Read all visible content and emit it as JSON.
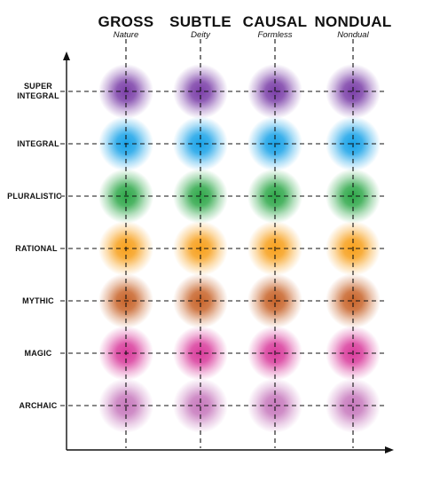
{
  "columns": [
    {
      "title": "GROSS",
      "subtitle": "Nature"
    },
    {
      "title": "SUBTLE",
      "subtitle": "Deity"
    },
    {
      "title": "CAUSAL",
      "subtitle": "Formless"
    },
    {
      "title": "NONDUAL",
      "subtitle": "Nondual"
    }
  ],
  "rows": [
    {
      "label_line1": "SUPER",
      "label_line2": "INTEGRAL",
      "color": "#7b3fa8"
    },
    {
      "label_line1": "INTEGRAL",
      "label_line2": "",
      "color": "#1aa3e8"
    },
    {
      "label_line1": "PLURALISTIC",
      "label_line2": "",
      "color": "#2fa84a"
    },
    {
      "label_line1": "RATIONAL",
      "label_line2": "",
      "color": "#f7a01c"
    },
    {
      "label_line1": "MYTHIC",
      "label_line2": "",
      "color": "#c8642a"
    },
    {
      "label_line1": "MAGIC",
      "label_line2": "",
      "color": "#d93c9c"
    },
    {
      "label_line1": "ARCHAIC",
      "label_line2": "",
      "color": "#c779bd"
    }
  ]
}
